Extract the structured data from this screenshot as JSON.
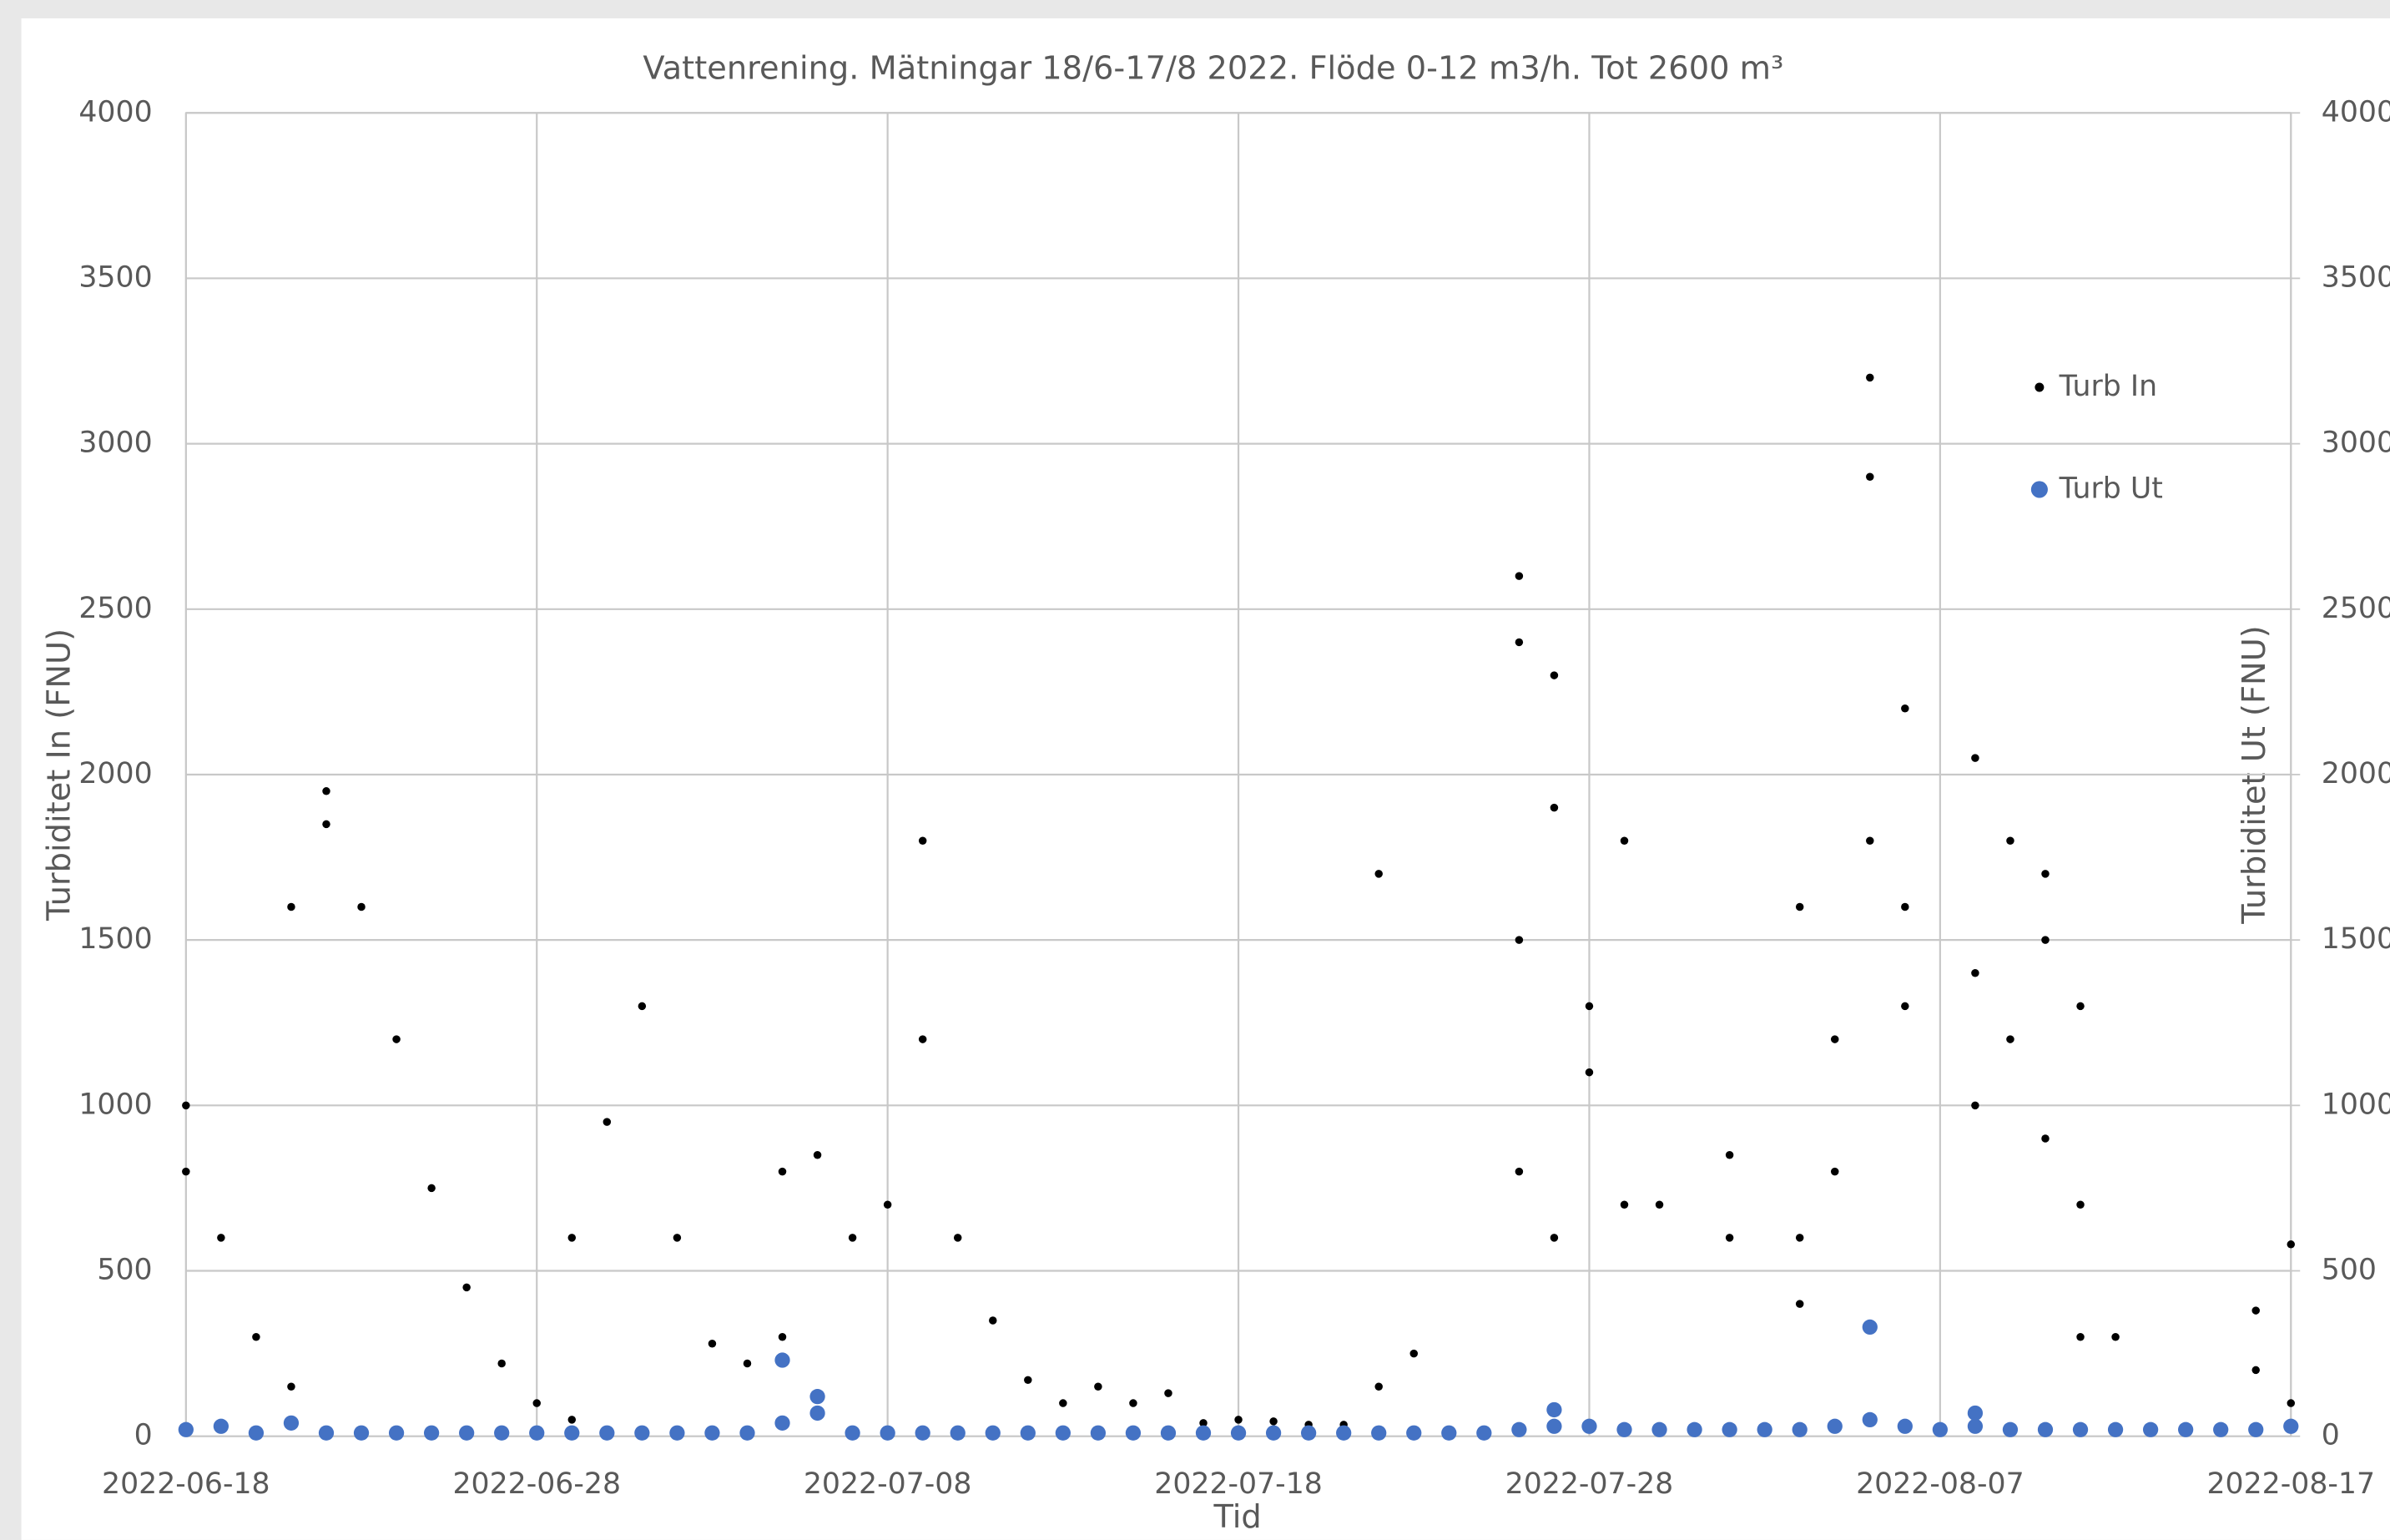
{
  "chart_data": {
    "type": "scatter",
    "title": "Vattenrening. Mätningar 18/6-17/8 2022. Flöde 0-12 m3/h. Tot 2600 m³",
    "xlabel": "Tid",
    "ylabel": "Turbiditet In (FNU)",
    "y2label": "Turbiditet Ut (FNU)",
    "xlim": [
      "2022-06-18",
      "2022-08-17"
    ],
    "xticks": [
      "2022-06-18",
      "2022-06-28",
      "2022-07-08",
      "2022-07-18",
      "2022-07-28",
      "2022-08-07",
      "2022-08-17"
    ],
    "ylim": [
      0,
      4000
    ],
    "yticks": [
      0,
      500,
      1000,
      1500,
      2000,
      2500,
      3000,
      3500,
      4000
    ],
    "y2lim": [
      0,
      4000
    ],
    "y2ticks": [
      0,
      500,
      1000,
      1500,
      2000,
      2500,
      3000,
      3500,
      4000
    ],
    "grid": true,
    "legend": "upper right",
    "series": [
      {
        "name": "Turb In",
        "color": "#000000",
        "x": [
          "2022-06-18",
          "2022-06-18",
          "2022-06-19",
          "2022-06-20",
          "2022-06-21",
          "2022-06-21",
          "2022-06-22",
          "2022-06-22",
          "2022-06-23",
          "2022-06-24",
          "2022-06-25",
          "2022-06-26",
          "2022-06-27",
          "2022-06-28",
          "2022-06-29",
          "2022-06-29",
          "2022-06-30",
          "2022-07-01",
          "2022-07-02",
          "2022-07-03",
          "2022-07-04",
          "2022-07-05",
          "2022-07-05",
          "2022-07-06",
          "2022-07-07",
          "2022-07-08",
          "2022-07-09",
          "2022-07-09",
          "2022-07-10",
          "2022-07-11",
          "2022-07-12",
          "2022-07-13",
          "2022-07-14",
          "2022-07-15",
          "2022-07-16",
          "2022-07-17",
          "2022-07-18",
          "2022-07-19",
          "2022-07-20",
          "2022-07-21",
          "2022-07-22",
          "2022-07-22",
          "2022-07-23",
          "2022-07-26",
          "2022-07-26",
          "2022-07-26",
          "2022-07-26",
          "2022-07-27",
          "2022-07-27",
          "2022-07-27",
          "2022-07-28",
          "2022-07-28",
          "2022-07-29",
          "2022-07-29",
          "2022-07-30",
          "2022-08-01",
          "2022-08-01",
          "2022-08-03",
          "2022-08-03",
          "2022-08-03",
          "2022-08-04",
          "2022-08-04",
          "2022-08-05",
          "2022-08-05",
          "2022-08-05",
          "2022-08-06",
          "2022-08-06",
          "2022-08-06",
          "2022-08-08",
          "2022-08-08",
          "2022-08-08",
          "2022-08-09",
          "2022-08-09",
          "2022-08-10",
          "2022-08-10",
          "2022-08-10",
          "2022-08-11",
          "2022-08-11",
          "2022-08-11",
          "2022-08-12",
          "2022-08-16",
          "2022-08-16",
          "2022-08-17",
          "2022-08-17"
        ],
        "values": [
          1000,
          800,
          600,
          300,
          150,
          1600,
          1850,
          1950,
          1600,
          1200,
          750,
          450,
          220,
          100,
          50,
          600,
          950,
          1300,
          600,
          280,
          220,
          300,
          800,
          850,
          600,
          700,
          1800,
          1200,
          600,
          350,
          170,
          100,
          150,
          100,
          130,
          40,
          50,
          45,
          35,
          35,
          150,
          1700,
          250,
          800,
          1500,
          2400,
          2600,
          600,
          1900,
          2300,
          1100,
          1300,
          700,
          1800,
          700,
          600,
          850,
          400,
          600,
          1600,
          800,
          1200,
          1800,
          2900,
          3200,
          1300,
          1600,
          2200,
          1000,
          1400,
          2050,
          1200,
          1800,
          900,
          1500,
          1700,
          300,
          700,
          1300,
          300,
          200,
          380,
          100,
          580
        ]
      },
      {
        "name": "Turb Ut",
        "color": "#4472c4",
        "axis": "y2",
        "x": [
          "2022-06-18",
          "2022-06-19",
          "2022-06-20",
          "2022-06-21",
          "2022-06-22",
          "2022-06-23",
          "2022-06-24",
          "2022-06-25",
          "2022-06-26",
          "2022-06-27",
          "2022-06-28",
          "2022-06-29",
          "2022-06-30",
          "2022-07-01",
          "2022-07-02",
          "2022-07-03",
          "2022-07-04",
          "2022-07-05",
          "2022-07-05",
          "2022-07-06",
          "2022-07-06",
          "2022-07-07",
          "2022-07-08",
          "2022-07-09",
          "2022-07-10",
          "2022-07-11",
          "2022-07-12",
          "2022-07-13",
          "2022-07-14",
          "2022-07-15",
          "2022-07-16",
          "2022-07-17",
          "2022-07-18",
          "2022-07-19",
          "2022-07-20",
          "2022-07-21",
          "2022-07-22",
          "2022-07-23",
          "2022-07-24",
          "2022-07-25",
          "2022-07-26",
          "2022-07-27",
          "2022-07-27",
          "2022-07-28",
          "2022-07-29",
          "2022-07-30",
          "2022-07-31",
          "2022-08-01",
          "2022-08-02",
          "2022-08-03",
          "2022-08-04",
          "2022-08-05",
          "2022-08-05",
          "2022-08-06",
          "2022-08-07",
          "2022-08-08",
          "2022-08-08",
          "2022-08-09",
          "2022-08-10",
          "2022-08-11",
          "2022-08-12",
          "2022-08-13",
          "2022-08-14",
          "2022-08-15",
          "2022-08-16",
          "2022-08-17"
        ],
        "values": [
          20,
          30,
          10,
          40,
          10,
          10,
          10,
          10,
          10,
          10,
          10,
          10,
          10,
          10,
          10,
          10,
          10,
          40,
          230,
          70,
          120,
          10,
          10,
          10,
          10,
          10,
          10,
          10,
          10,
          10,
          10,
          10,
          10,
          10,
          10,
          10,
          10,
          10,
          10,
          10,
          20,
          30,
          80,
          30,
          20,
          20,
          20,
          20,
          20,
          20,
          30,
          50,
          330,
          30,
          20,
          30,
          70,
          20,
          20,
          20,
          20,
          20,
          20,
          20,
          20,
          30
        ]
      }
    ]
  }
}
